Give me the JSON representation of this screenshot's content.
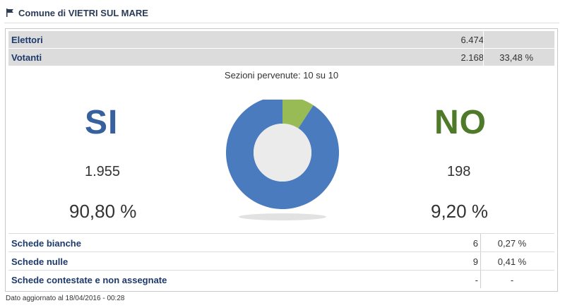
{
  "header": {
    "title": "Comune di VIETRI SUL MARE",
    "icon": "flag-icon"
  },
  "summary": {
    "rows": [
      {
        "label": "Elettori",
        "value": "6.474",
        "percent": ""
      },
      {
        "label": "Votanti",
        "value": "2.168",
        "percent": "33,48 %"
      }
    ]
  },
  "sezioni": "Sezioni pervenute: 10 su 10",
  "results": {
    "si": {
      "label": "SI",
      "count": "1.955",
      "percent": "90,80 %",
      "color": "#4a7bbe"
    },
    "no": {
      "label": "NO",
      "count": "198",
      "percent": "9,20 %",
      "color": "#99bb55"
    }
  },
  "chart_data": {
    "type": "pie",
    "categories": [
      "SI",
      "NO"
    ],
    "values": [
      90.8,
      9.2
    ],
    "colors": [
      "#4a7bbe",
      "#99bb55"
    ]
  },
  "details": {
    "rows": [
      {
        "label": "Schede bianche",
        "value": "6",
        "percent": "0,27 %"
      },
      {
        "label": "Schede nulle",
        "value": "9",
        "percent": "0,41 %"
      },
      {
        "label": "Schede contestate e non assegnate",
        "value": "-",
        "percent": "-"
      }
    ]
  },
  "footer": "Dato aggiornato al 18/04/2016 - 00:28"
}
